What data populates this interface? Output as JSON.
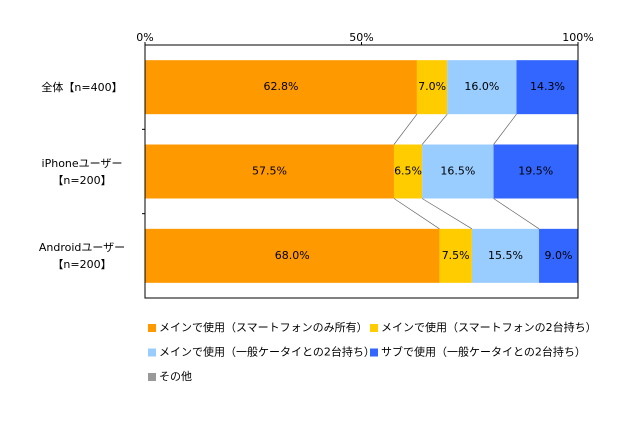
{
  "chart_data": {
    "type": "stacked-bar-horizontal",
    "categories": [
      "全体【n=400】",
      "iPhoneユーザー\n【n=200】",
      "Androidユーザー\n【n=200】"
    ],
    "xlim": [
      0,
      100
    ],
    "xticks": [
      {
        "value": 0,
        "label": "0%"
      },
      {
        "value": 50,
        "label": "50%"
      },
      {
        "value": 100,
        "label": "100%"
      }
    ],
    "series": [
      {
        "name": "メインで使用（スマートフォンのみ所有）",
        "color": "#ff9900",
        "values": [
          62.8,
          57.5,
          68.0
        ],
        "value_labels": [
          "62.8%",
          "57.5%",
          "68.0%"
        ]
      },
      {
        "name": "メインで使用（スマートフォンの2台持ち）",
        "color": "#ffcc00",
        "values": [
          7.0,
          6.5,
          7.5
        ],
        "value_labels": [
          "7.0%",
          "6.5%",
          "7.5%"
        ]
      },
      {
        "name": "メインで使用（一般ケータイとの2台持ち）",
        "color": "#99ccff",
        "values": [
          16.0,
          16.5,
          15.5
        ],
        "value_labels": [
          "16.0%",
          "16.5%",
          "15.5%"
        ]
      },
      {
        "name": "サブで使用（一般ケータイとの2台持ち）",
        "color": "#3366ff",
        "values": [
          14.3,
          19.5,
          9.0
        ],
        "value_labels": [
          "14.3%",
          "19.5%",
          "9.0%"
        ]
      },
      {
        "name": "その他",
        "color": "#999999",
        "values": [
          0,
          0,
          0
        ]
      }
    ]
  }
}
